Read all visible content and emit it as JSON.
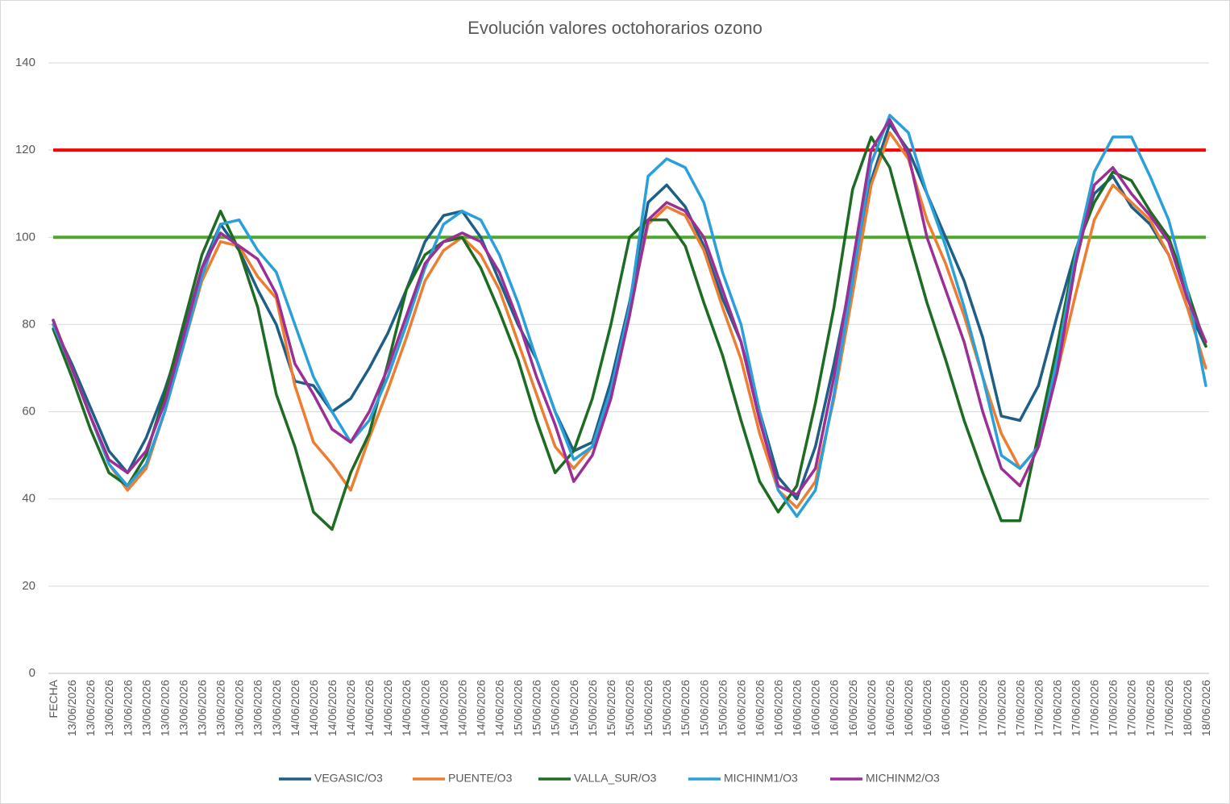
{
  "chart_data": {
    "type": "line",
    "title": "Evolución valores octohorarios ozono",
    "categories": [
      "FECHA",
      "13/06/2026",
      "13/06/2026",
      "13/06/2026",
      "13/06/2026",
      "13/06/2026",
      "13/06/2026",
      "13/06/2026",
      "13/06/2026",
      "13/06/2026",
      "13/06/2026",
      "13/06/2026",
      "13/06/2026",
      "14/06/2026",
      "14/06/2026",
      "14/06/2026",
      "14/06/2026",
      "14/06/2026",
      "14/06/2026",
      "14/06/2026",
      "14/06/2026",
      "14/06/2026",
      "14/06/2026",
      "14/06/2026",
      "14/06/2026",
      "15/06/2026",
      "15/06/2026",
      "15/06/2026",
      "15/06/2026",
      "15/06/2026",
      "15/06/2026",
      "15/06/2026",
      "15/06/2026",
      "15/06/2026",
      "15/06/2026",
      "15/06/2026",
      "15/06/2026",
      "16/06/2026",
      "16/06/2026",
      "16/06/2026",
      "16/06/2026",
      "16/06/2026",
      "16/06/2026",
      "16/06/2026",
      "16/06/2026",
      "16/06/2026",
      "16/06/2026",
      "16/06/2026",
      "16/06/2026",
      "17/06/2026",
      "17/06/2026",
      "17/06/2026",
      "17/06/2026",
      "17/06/2026",
      "17/06/2026",
      "17/06/2026",
      "17/06/2026",
      "17/06/2026",
      "17/06/2026",
      "17/06/2026",
      "17/06/2026",
      "18/06/2026",
      "18/06/2026"
    ],
    "series": [
      {
        "name": "VEGASIC/O3",
        "color": "#1d5f86",
        "values": [
          80,
          71,
          61,
          51,
          46,
          54,
          65,
          78,
          93,
          103,
          97,
          88,
          80,
          67,
          66,
          60,
          63,
          70,
          78,
          88,
          99,
          105,
          106,
          100,
          90,
          80,
          72,
          60,
          51,
          53,
          67,
          85,
          108,
          112,
          107,
          98,
          86,
          76,
          60,
          45,
          40,
          52,
          71,
          92,
          113,
          126,
          120,
          110,
          100,
          90,
          77,
          59,
          58,
          66,
          82,
          97,
          110,
          114,
          107,
          103,
          96,
          84,
          75
        ]
      },
      {
        "name": "PUENTE/O3",
        "color": "#ed7d31",
        "values": [
          81,
          70,
          59,
          48,
          42,
          47,
          60,
          75,
          90,
          99,
          98,
          91,
          86,
          66,
          53,
          48,
          42,
          54,
          65,
          77,
          90,
          97,
          100,
          96,
          88,
          76,
          64,
          52,
          47,
          52,
          65,
          83,
          103,
          107,
          105,
          97,
          84,
          72,
          55,
          42,
          38,
          44,
          63,
          87,
          112,
          124,
          118,
          104,
          94,
          82,
          68,
          55,
          47,
          52,
          69,
          87,
          104,
          112,
          108,
          104,
          96,
          84,
          70
        ]
      },
      {
        "name": "VALLA_SUR/O3",
        "color": "#1e6b24",
        "values": [
          79,
          68,
          56,
          46,
          43,
          50,
          64,
          80,
          96,
          106,
          97,
          84,
          64,
          52,
          37,
          33,
          46,
          55,
          71,
          88,
          96,
          99,
          100,
          93,
          83,
          72,
          58,
          46,
          51,
          63,
          80,
          100,
          104,
          104,
          98,
          85,
          73,
          58,
          44,
          37,
          43,
          62,
          84,
          111,
          123,
          116,
          100,
          85,
          72,
          58,
          46,
          35,
          35,
          55,
          75,
          97,
          108,
          115,
          113,
          106,
          100,
          88,
          75
        ]
      },
      {
        "name": "MICHINM1/O3",
        "color": "#2aa0d8",
        "values": [
          80,
          70,
          59,
          48,
          43,
          48,
          60,
          75,
          91,
          103,
          104,
          97,
          92,
          80,
          68,
          60,
          53,
          58,
          68,
          80,
          93,
          103,
          106,
          104,
          96,
          85,
          72,
          60,
          49,
          52,
          65,
          84,
          114,
          118,
          116,
          108,
          92,
          80,
          60,
          42,
          36,
          42,
          64,
          90,
          117,
          128,
          124,
          110,
          98,
          84,
          68,
          50,
          47,
          52,
          72,
          96,
          115,
          123,
          123,
          114,
          104,
          88,
          66
        ]
      },
      {
        "name": "MICHINM2/O3",
        "color": "#9b2f96",
        "values": [
          81,
          70,
          59,
          49,
          46,
          51,
          62,
          77,
          93,
          101,
          98,
          95,
          87,
          71,
          64,
          56,
          53,
          60,
          70,
          82,
          94,
          99,
          101,
          99,
          92,
          81,
          68,
          57,
          44,
          50,
          63,
          82,
          104,
          108,
          106,
          100,
          88,
          76,
          58,
          43,
          41,
          47,
          68,
          94,
          120,
          127,
          119,
          100,
          88,
          76,
          60,
          47,
          43,
          52,
          69,
          94,
          112,
          116,
          110,
          105,
          99,
          86,
          76
        ]
      }
    ],
    "reference_lines": [
      {
        "value": 120,
        "color": "#ff0000"
      },
      {
        "value": 100,
        "color": "#4ea72e"
      }
    ],
    "ylim": [
      0,
      140
    ],
    "yticks": [
      0,
      20,
      40,
      60,
      80,
      100,
      120,
      140
    ],
    "grid": true,
    "legend": "bottom"
  }
}
